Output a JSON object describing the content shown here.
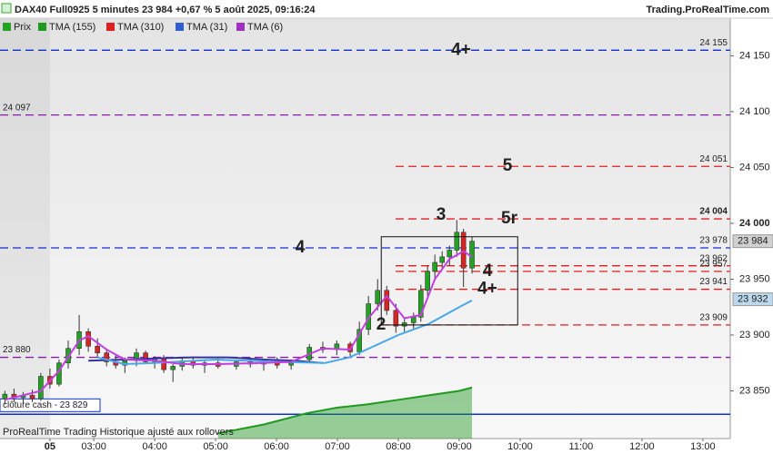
{
  "chart_data": {
    "type": "candlestick",
    "title": "DAX40 Full0925 5 minutes 23 984 +0,67 % 5 août 2025, 09:16:24",
    "source": "Trading.ProRealTime.com",
    "footer": "ProRealTime Trading  Historique ajusté aux rollovers",
    "candle_name": "Prix",
    "up_color": "#22a322",
    "down_color": "#d92424",
    "x": [
      1.54,
      1.69,
      1.84,
      1.99,
      2.13,
      2.28,
      2.43,
      2.58,
      2.76,
      2.91,
      3.06,
      3.21,
      3.36,
      3.51,
      3.7,
      3.85,
      4.0,
      4.15,
      4.3,
      4.45,
      4.63,
      4.82,
      5.04,
      5.34,
      5.57,
      5.79,
      6.01,
      6.24,
      6.54,
      6.76,
      6.99,
      7.21,
      7.36,
      7.51,
      7.66,
      7.81,
      7.96,
      8.1,
      8.25,
      8.37,
      8.48,
      8.6,
      8.72,
      8.84,
      8.96,
      9.07,
      9.21
    ],
    "open": [
      23843,
      23847,
      23844,
      23846,
      23843,
      23863,
      23856,
      23875,
      23888,
      23903,
      23890,
      23884,
      23876,
      23873,
      23877,
      23884,
      23876,
      23879,
      23869,
      23872,
      23877,
      23873,
      23875,
      23872,
      23876,
      23874,
      23877,
      23873,
      23878,
      23889,
      23887,
      23892,
      23885,
      23905,
      23928,
      23940,
      23922,
      23908,
      23911,
      23916,
      23940,
      23957,
      23965,
      23970,
      23976,
      23992,
      23960
    ],
    "high": [
      23850,
      23852,
      23849,
      23851,
      23866,
      23870,
      23878,
      23895,
      23918,
      23906,
      23897,
      23888,
      23882,
      23880,
      23888,
      23886,
      23881,
      23882,
      23874,
      23880,
      23880,
      23878,
      23879,
      23878,
      23880,
      23878,
      23880,
      23878,
      23892,
      23894,
      23895,
      23894,
      23912,
      23935,
      23950,
      23944,
      23928,
      23915,
      23920,
      23945,
      23962,
      23972,
      23975,
      23980,
      24003,
      23995,
      23988
    ],
    "low": [
      23838,
      23840,
      23838,
      23840,
      23841,
      23852,
      23854,
      23870,
      23882,
      23885,
      23880,
      23872,
      23870,
      23866,
      23872,
      23874,
      23870,
      23866,
      23858,
      23868,
      23870,
      23866,
      23870,
      23869,
      23871,
      23868,
      23870,
      23869,
      23875,
      23884,
      23882,
      23880,
      23882,
      23900,
      23922,
      23918,
      23902,
      23903,
      23905,
      23912,
      23935,
      23950,
      23958,
      23962,
      23970,
      23943,
      23955
    ],
    "close": [
      23847,
      23844,
      23846,
      23843,
      23863,
      23856,
      23875,
      23888,
      23903,
      23890,
      23884,
      23876,
      23873,
      23877,
      23884,
      23876,
      23879,
      23869,
      23872,
      23877,
      23873,
      23875,
      23872,
      23876,
      23874,
      23877,
      23873,
      23875,
      23889,
      23887,
      23892,
      23885,
      23905,
      23928,
      23940,
      23922,
      23908,
      23911,
      23916,
      23940,
      23957,
      23965,
      23970,
      23976,
      23992,
      23960,
      23984
    ],
    "series": [
      {
        "name": "TMA (155)",
        "color": "#1e9a1e",
        "style": "area",
        "x": [
          5.04,
          5.8,
          6.5,
          7.0,
          7.5,
          8.0,
          8.5,
          9.0,
          9.21
        ],
        "values": [
          23812,
          23820,
          23830,
          23835,
          23838,
          23842,
          23846,
          23850,
          23853
        ]
      },
      {
        "name": "TMA (310)",
        "color": "#e02020",
        "line_color": "#35349f",
        "style": "line",
        "x": [
          2.91,
          3.5,
          4.0,
          4.6,
          5.2,
          5.8,
          6.3,
          6.75
        ],
        "values": [
          23877,
          23878,
          23879,
          23880,
          23880,
          23878,
          23877,
          23875
        ]
      },
      {
        "name": "TMA (31)",
        "color": "#2f5fd0",
        "line_color": "#4aa8e8",
        "style": "line",
        "x": [
          3.06,
          3.5,
          4.0,
          5.0,
          6.0,
          6.8,
          7.2,
          7.6,
          8.0,
          8.5,
          9.0,
          9.21
        ],
        "values": [
          23880,
          23874,
          23875,
          23878,
          23876,
          23875,
          23880,
          23890,
          23900,
          23910,
          23925,
          23931
        ]
      },
      {
        "name": "TMA (6)",
        "color": "#a030c0",
        "line_color": "#c43fe0",
        "style": "line",
        "x": [
          1.54,
          2.13,
          2.43,
          2.76,
          2.91,
          3.21,
          3.51,
          4.0,
          4.45,
          5.04,
          5.79,
          6.24,
          6.76,
          7.21,
          7.51,
          7.81,
          8.1,
          8.37,
          8.6,
          8.84,
          9.07,
          9.21
        ],
        "values": [
          23842,
          23850,
          23868,
          23895,
          23899,
          23887,
          23878,
          23877,
          23874,
          23874,
          23875,
          23876,
          23888,
          23887,
          23915,
          23935,
          23915,
          23918,
          23950,
          23968,
          23975,
          23970
        ]
      }
    ],
    "levels": [
      {
        "value": 24155,
        "label": "24 155",
        "color": "#1030d0",
        "markers": [
          "4+"
        ]
      },
      {
        "value": 24097,
        "label": "24 097",
        "color": "#8a1ab0",
        "markers": []
      },
      {
        "value": 24051,
        "label": "24 051",
        "color": "#e02020",
        "markers": [
          "5"
        ]
      },
      {
        "value": 24004,
        "label": "24 004",
        "color": "#e02020",
        "markers": [
          "3",
          "5r"
        ]
      },
      {
        "value": 23978,
        "label": "23 978",
        "color": "#1030d0",
        "markers": [
          "4"
        ]
      },
      {
        "value": 23962,
        "label": "23 962",
        "color": "#e02020",
        "markers": []
      },
      {
        "value": 23957,
        "label": "23 957",
        "color": "#e02020",
        "markers": [
          "4"
        ]
      },
      {
        "value": 23941,
        "label": "23 941",
        "color": "#e02020",
        "markers": [
          "4+"
        ]
      },
      {
        "value": 23909,
        "label": "23 909",
        "color": "#e02020",
        "markers": [
          "2"
        ]
      },
      {
        "value": 23880,
        "label": "23 880",
        "color": "#8a1ab0",
        "markers": []
      },
      {
        "value": 23829,
        "label": "clôture cash - 23 829",
        "color": "#1030d0",
        "markers": []
      }
    ],
    "zone": {
      "x": [
        7.72,
        9.96
      ],
      "y": [
        23909,
        23988
      ]
    },
    "price_tags": [
      {
        "value": 23984,
        "label": "23 984",
        "color": "#d0d0d0"
      },
      {
        "value": 23932,
        "label": "23 932",
        "color": "#bcd8ec"
      }
    ],
    "xlim": [
      1.46,
      13.45
    ],
    "ylim": [
      23807.3,
      24183.7
    ],
    "xticks": [
      {
        "value": 2.28,
        "label": "05"
      },
      {
        "value": 3,
        "label": "03:00"
      },
      {
        "value": 4,
        "label": "04:00"
      },
      {
        "value": 5,
        "label": "05:00"
      },
      {
        "value": 6,
        "label": "06:00"
      },
      {
        "value": 7,
        "label": "07:00"
      },
      {
        "value": 8,
        "label": "08:00"
      },
      {
        "value": 9,
        "label": "09:00"
      },
      {
        "value": 10,
        "label": "10:00"
      },
      {
        "value": 11,
        "label": "11:00"
      },
      {
        "value": 12,
        "label": "12:00"
      },
      {
        "value": 13,
        "label": "13:00"
      }
    ],
    "yticks": [
      {
        "value": 23850,
        "label": "23 850"
      },
      {
        "value": 23900,
        "label": "23 900"
      },
      {
        "value": 23950,
        "label": "23 950"
      },
      {
        "value": 24000,
        "label": "24 000"
      },
      {
        "value": 24050,
        "label": "24 050"
      },
      {
        "value": 24100,
        "label": "24 100"
      },
      {
        "value": 24150,
        "label": "24 150"
      }
    ]
  }
}
